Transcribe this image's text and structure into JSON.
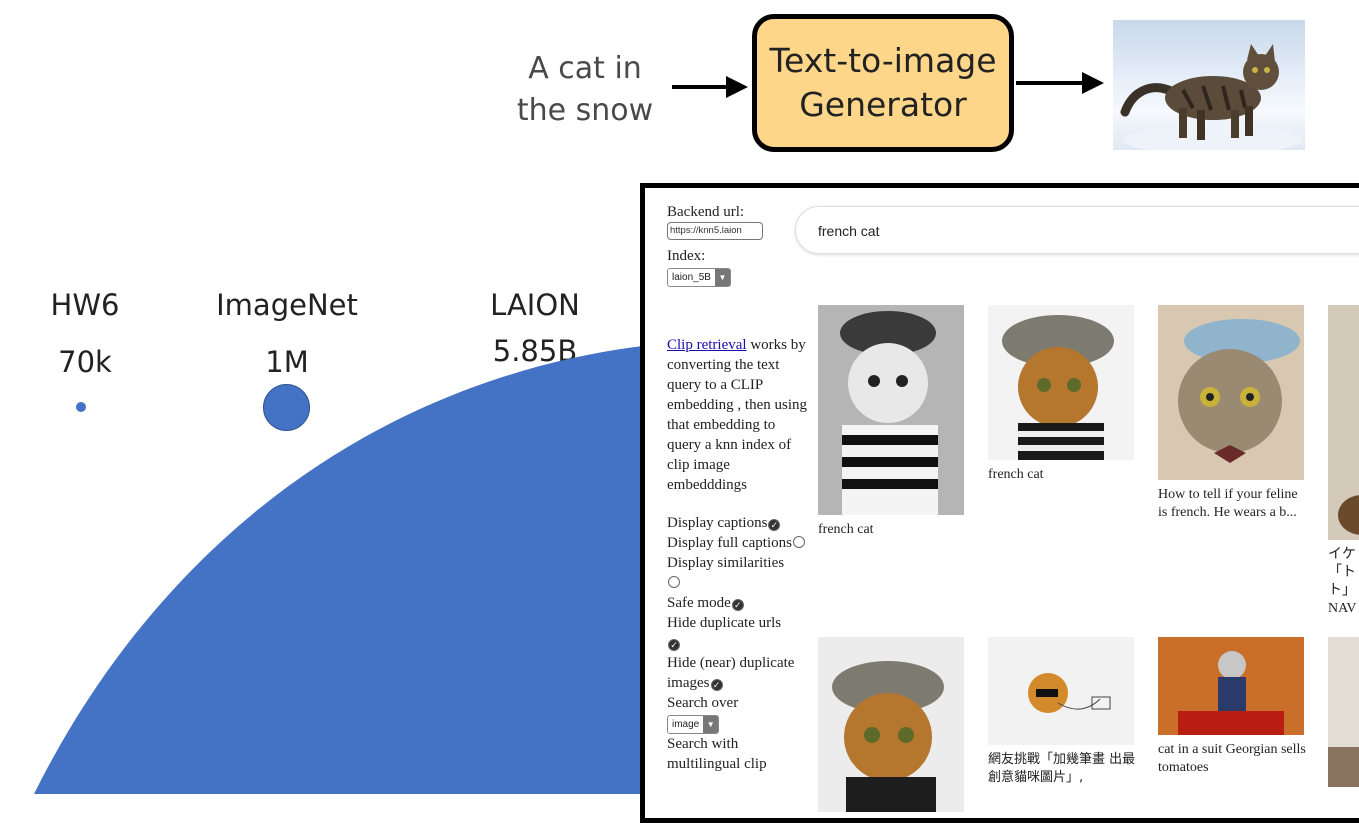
{
  "pipeline": {
    "prompt": [
      "A cat in",
      "the snow"
    ],
    "generator": [
      "Text-to-image",
      "Generator"
    ]
  },
  "datasets": [
    {
      "name": "HW6",
      "size": "70k"
    },
    {
      "name": "ImageNet",
      "size": "1M"
    },
    {
      "name": "LAION",
      "size": "5.85B"
    }
  ],
  "colors": {
    "dot": "#4472c4",
    "generator_box": "#fdd68a"
  },
  "app": {
    "backend_label": "Backend url:",
    "backend_value": "https://knn5.laion",
    "index_label": "Index:",
    "index_value": "laion_5B",
    "search_query": "french cat",
    "description_link": "Clip retrieval",
    "description_rest": " works by converting the text query to a CLIP embedding , then using that embedding to query a knn index of clip image embedddings",
    "options": {
      "display_captions": "Display captions",
      "display_full_captions": "Display full captions",
      "display_similarities": "Display similarities",
      "safe_mode": "Safe mode",
      "hide_duplicate_urls": "Hide duplicate urls",
      "hide_near_duplicates": "Hide (near) duplicate images",
      "search_over": "Search over",
      "search_over_value": "image",
      "multilingual": "Search with multilingual clip"
    },
    "results": [
      {
        "caption": "french cat"
      },
      {
        "caption": "french cat"
      },
      {
        "caption": "How to tell if your feline is french. He wears a b..."
      },
      {
        "caption": "イケ 「ト ト」 NAV"
      },
      {
        "caption": ""
      },
      {
        "caption": "網友挑戰「加幾筆畫 出最創意貓咪圖片」,"
      },
      {
        "caption": "cat in a suit Georgian sells tomatoes"
      },
      {
        "caption": ""
      }
    ]
  }
}
